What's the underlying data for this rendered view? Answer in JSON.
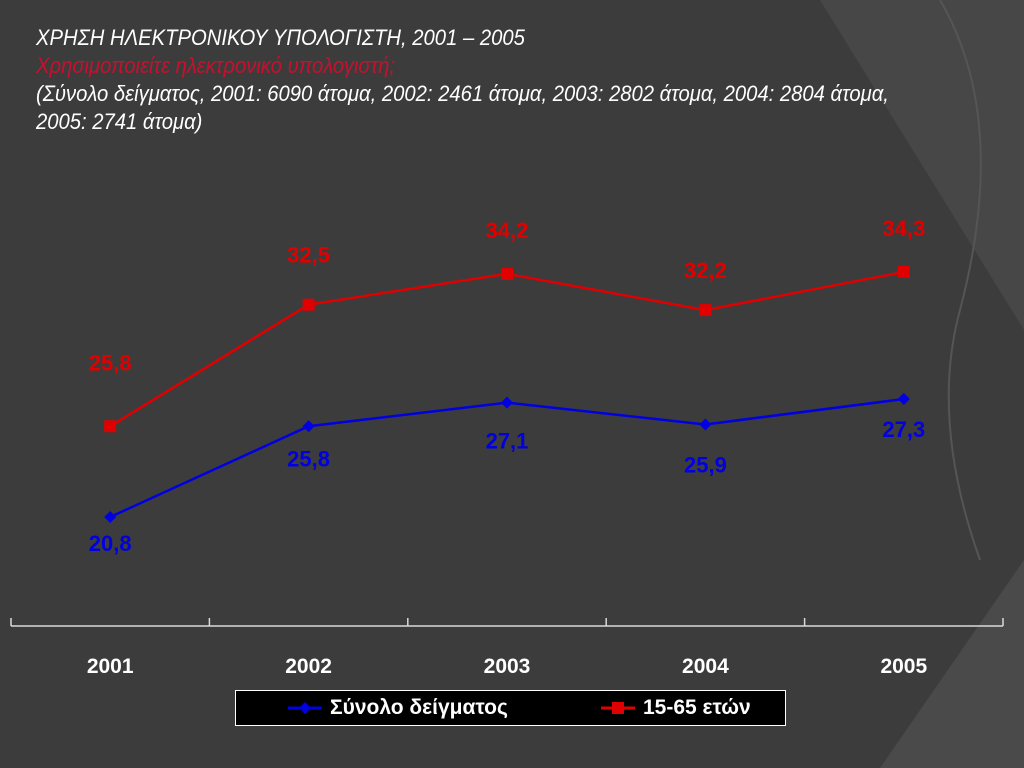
{
  "title": {
    "line1": "ΧΡΗΣΗ ΗΛΕΚΤΡΟΝΙΚΟΥ ΥΠΟΛΟΓΙΣΤΗ, 2001 – 2005",
    "line2": "Χρησιμοποιείτε ηλεκτρονικό υπολογιστή;",
    "line3": "(Σύνολο δείγματος, 2001: 6090 άτομα, 2002: 2461 άτομα, 2003: 2802 άτομα, 2004: 2804 άτομα, 2005: 2741 άτομα)"
  },
  "colors": {
    "background": "#3c3c3c",
    "series_blue": "#0000e0",
    "series_red": "#e00000",
    "subtitle": "#c8102e"
  },
  "chart_data": {
    "type": "line",
    "x": [
      "2001",
      "2002",
      "2003",
      "2004",
      "2005"
    ],
    "series": [
      {
        "name": "Σύνολο δείγματος",
        "values": [
          20.8,
          25.8,
          27.1,
          25.9,
          27.3
        ],
        "labels": [
          "20,8",
          "25,8",
          "27,1",
          "25,9",
          "27,3"
        ],
        "color": "#0000e0",
        "marker": "diamond"
      },
      {
        "name": "15-65 ετών",
        "values": [
          25.8,
          32.5,
          34.2,
          32.2,
          34.3
        ],
        "labels": [
          "25,8",
          "32,5",
          "34,2",
          "32,2",
          "34,3"
        ],
        "color": "#e00000",
        "marker": "square"
      }
    ],
    "ylim": [
      15,
      40
    ],
    "grid": false,
    "legend": "bottom"
  }
}
